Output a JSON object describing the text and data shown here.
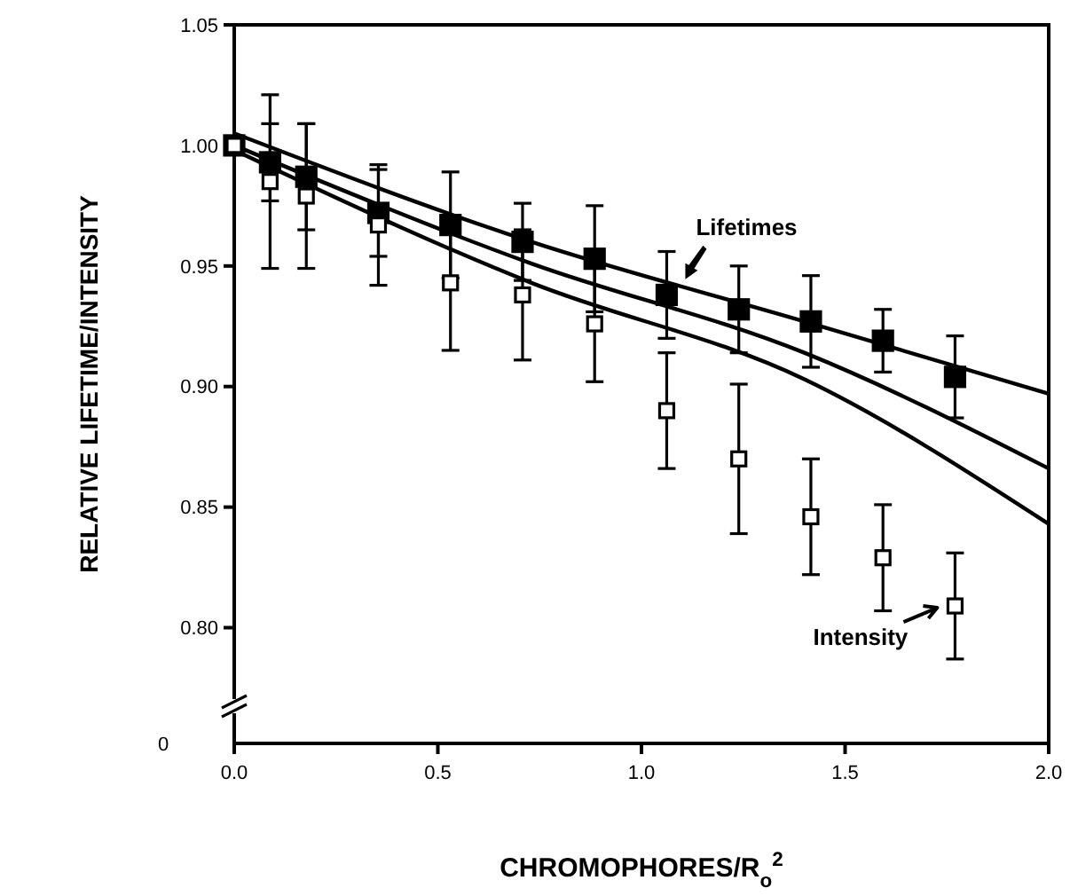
{
  "chart_data": {
    "type": "scatter",
    "xlabel": "CHROMOPHORES/R$_{o}$$^{2}$",
    "ylabel": "RELATIVE  LIFETIME/INTENSITY",
    "xlim": [
      0,
      2
    ],
    "xticks": [
      {
        "value": 0,
        "label": "0.0"
      },
      {
        "value": 0.5,
        "label": "0.5"
      },
      {
        "value": 1,
        "label": "1.0"
      },
      {
        "value": 1.5,
        "label": "1.5"
      },
      {
        "value": 2,
        "label": "2.0"
      }
    ],
    "ylim": [
      0.752,
      1.05
    ],
    "annotations": [
      "0"
    ],
    "yticks": [
      {
        "value": 0.8,
        "label": "0.80"
      },
      {
        "value": 0.85,
        "label": "0.85"
      },
      {
        "value": 0.9,
        "label": "0.90"
      },
      {
        "value": 0.95,
        "label": "0.95"
      },
      {
        "value": 1,
        "label": "1.00"
      },
      {
        "value": 1.05,
        "label": "1.05"
      }
    ],
    "grid": false,
    "series": [
      {
        "type": "line",
        "color": "#000000",
        "line_style": "solid",
        "x": [
          0,
          0.73,
          1.4,
          2.0
        ],
        "values": [
          1.005,
          0.96,
          0.927,
          0.897
        ]
      },
      {
        "type": "line",
        "color": "#000000",
        "line_style": "solid",
        "x": [
          0,
          0.73,
          1.4,
          2.0
        ],
        "values": [
          1.0,
          0.951,
          0.914,
          0.866
        ]
      },
      {
        "type": "line",
        "color": "#000000",
        "line_style": "solid",
        "x": [
          0,
          0.73,
          1.4,
          2.0
        ],
        "values": [
          0.998,
          0.943,
          0.903,
          0.843
        ]
      },
      {
        "name": "Lifetimes",
        "color": "#000000",
        "marker": "square",
        "x": [
          0,
          0.088,
          0.177,
          0.354,
          0.531,
          0.708,
          0.885,
          1.062,
          1.239,
          1.416,
          1.593,
          1.77
        ],
        "values": [
          1.0,
          0.993,
          0.987,
          0.972,
          0.967,
          0.96,
          0.953,
          0.938,
          0.932,
          0.927,
          0.919,
          0.904
        ],
        "errors": [
          null,
          0.016,
          0.022,
          0.018,
          0.022,
          0.016,
          0.022,
          0.018,
          0.018,
          0.019,
          0.013,
          0.017
        ]
      },
      {
        "name": "Intensity",
        "color": "#000000",
        "marker": "square",
        "x": [
          0,
          0.088,
          0.177,
          0.354,
          0.531,
          0.708,
          0.885,
          1.062,
          1.239,
          1.416,
          1.593,
          1.77
        ],
        "values": [
          1.0,
          0.985,
          0.979,
          0.967,
          0.943,
          0.938,
          0.926,
          0.89,
          0.87,
          0.846,
          0.829,
          0.809
        ],
        "errors": [
          null,
          0.036,
          0.03,
          0.025,
          0.028,
          0.027,
          0.024,
          0.024,
          0.031,
          0.024,
          0.022,
          0.022
        ]
      }
    ]
  }
}
